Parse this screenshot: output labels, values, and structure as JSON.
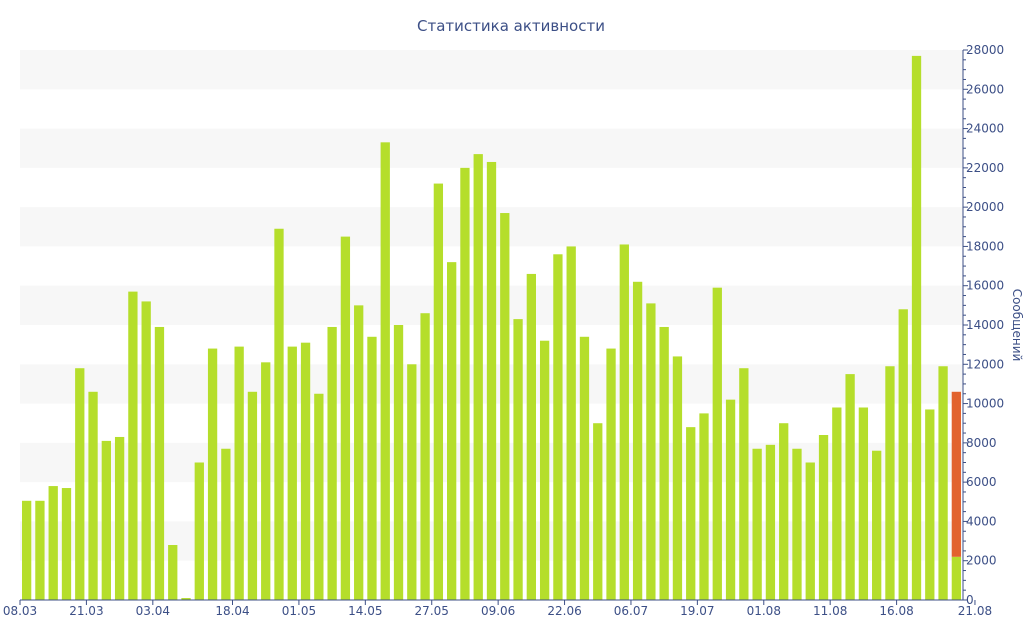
{
  "chart_data": {
    "type": "bar",
    "title": "Статистика активности",
    "xlabel": "",
    "ylabel": "Сообщений",
    "ylim": [
      0,
      28000
    ],
    "y_axis_position": "right",
    "y_ticks": [
      0,
      2000,
      4000,
      6000,
      8000,
      10000,
      12000,
      14000,
      16000,
      18000,
      20000,
      22000,
      24000,
      26000,
      28000
    ],
    "grid": "alternating horizontal bands",
    "x_tick_labels": [
      "08.03",
      "21.03",
      "03.04",
      "18.04",
      "01.05",
      "14.05",
      "27.05",
      "09.06",
      "22.06",
      "06.07",
      "19.07",
      "01.08",
      "11.08",
      "16.08",
      "21.08"
    ],
    "x_tick_bar_index": [
      0,
      5,
      10,
      16,
      21,
      26,
      31,
      36,
      41,
      46,
      51,
      56,
      61,
      66,
      71
    ],
    "bar_color": "#b5de2b",
    "highlight_color": "#e2632e",
    "band_color": "#f7f7f7",
    "text_color": "#3c4f86",
    "values": [
      5050,
      5050,
      5800,
      5700,
      11800,
      10600,
      8100,
      8300,
      15700,
      15200,
      13900,
      2800,
      100,
      7000,
      12800,
      7700,
      12900,
      10600,
      12100,
      18900,
      12900,
      13100,
      10500,
      13900,
      18500,
      15000,
      13400,
      23300,
      14000,
      12000,
      14600,
      21200,
      17200,
      22000,
      22700,
      22300,
      19700,
      14300,
      16600,
      13200,
      17600,
      18000,
      13400,
      9000,
      12800,
      18100,
      16200,
      15100,
      13900,
      12400,
      8800,
      9500,
      15900,
      10200,
      11800,
      7700,
      7900,
      9000,
      7700,
      7000,
      8400,
      9800,
      11500,
      9800,
      7600,
      11900,
      14800,
      27700,
      9700,
      11900,
      2200
    ],
    "highlighted_last_bar": {
      "base": 2200,
      "top": 10600
    }
  }
}
